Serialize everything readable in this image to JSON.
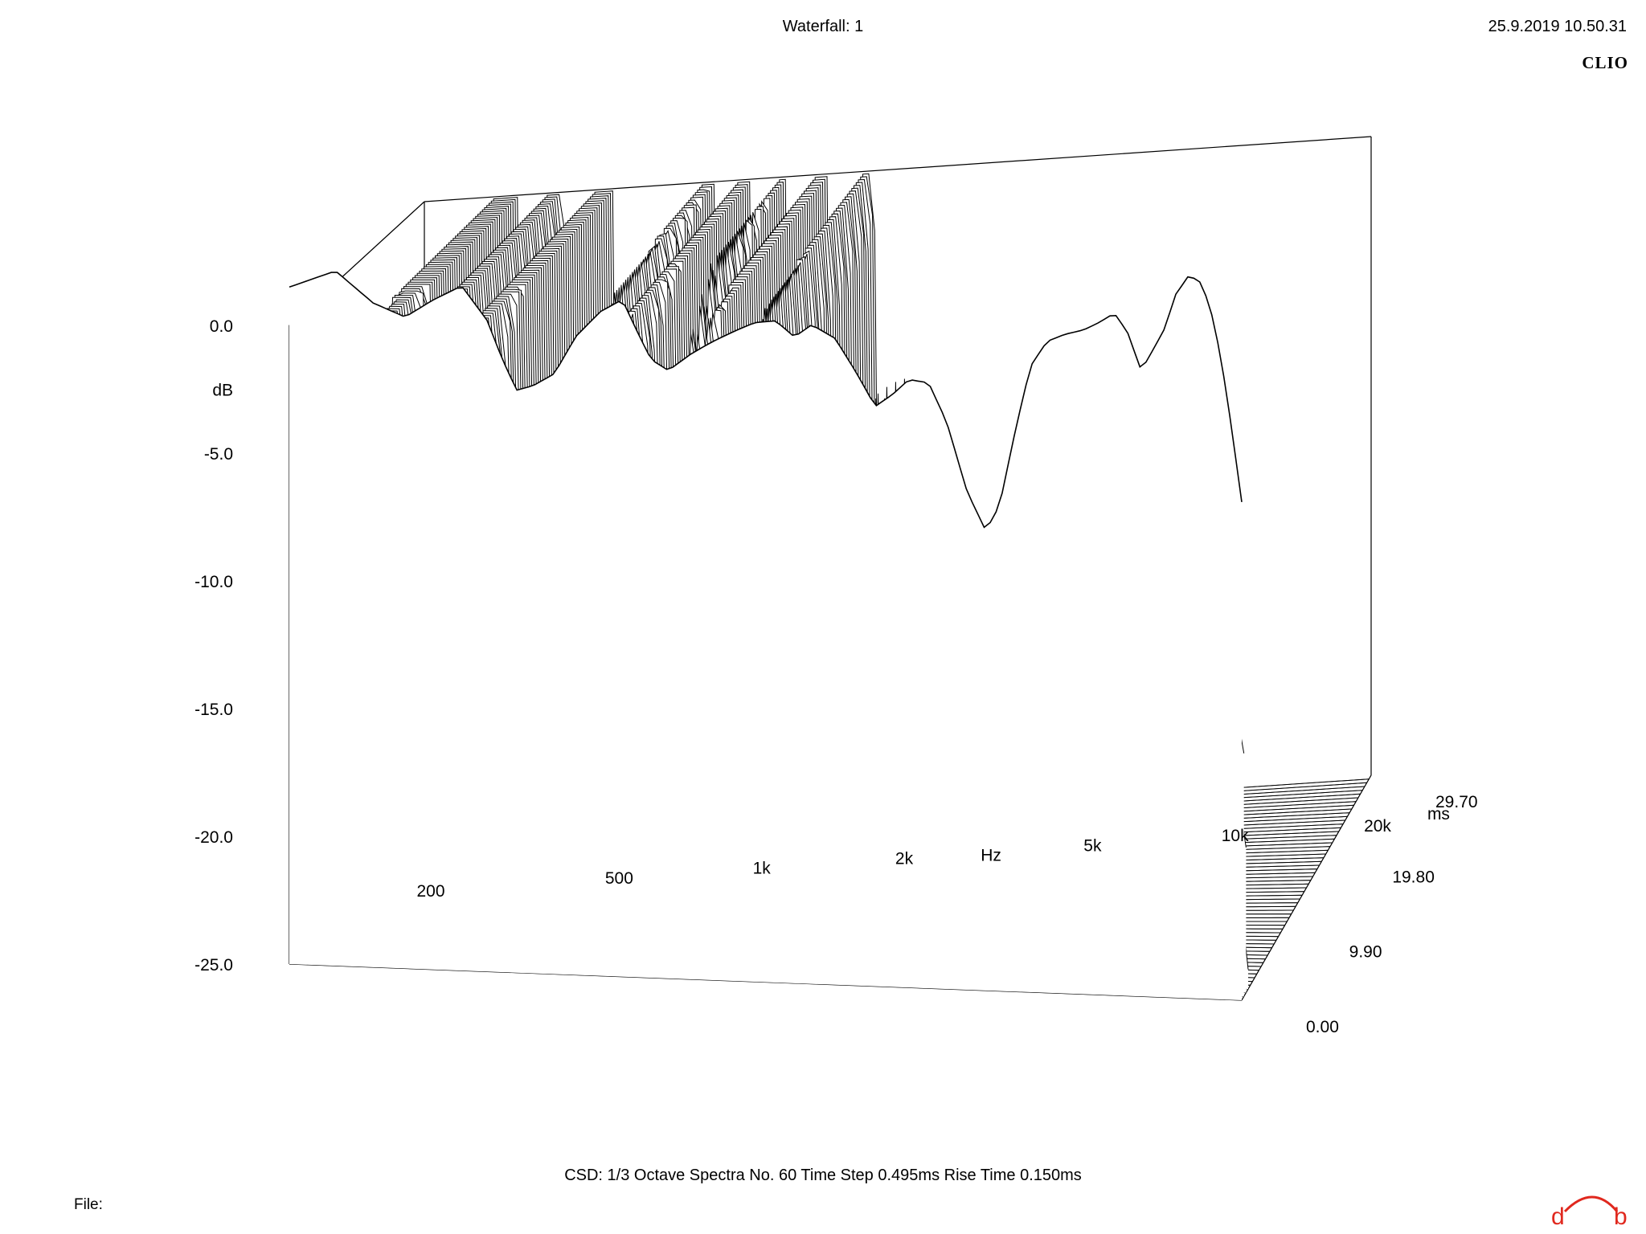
{
  "header": {
    "title": "Waterfall: 1",
    "timestamp": "25.9.2019 10.50.31",
    "brand": "CLIO"
  },
  "footer": {
    "info": "CSD:   1/3 Octave   Spectra No. 60   Time Step 0.495ms   Rise Time 0.150ms",
    "file_label": "File:"
  },
  "colors": {
    "line": "#000000",
    "background": "#ffffff",
    "logo_accent": "#e0281e"
  },
  "chart_data": {
    "type": "waterfall",
    "title": "Waterfall: 1",
    "x_axis": {
      "label": "Hz",
      "scale": "log",
      "range": [
        200,
        20000
      ],
      "ticks": [
        {
          "value": 200,
          "label": "200"
        },
        {
          "value": 500,
          "label": "500"
        },
        {
          "value": 1000,
          "label": "1k"
        },
        {
          "value": 2000,
          "label": "2k"
        },
        {
          "value": 5000,
          "label": "5k"
        },
        {
          "value": 10000,
          "label": "10k"
        },
        {
          "value": 20000,
          "label": "20k"
        }
      ]
    },
    "y_axis": {
      "label": "dB",
      "range": [
        -25,
        0
      ],
      "ticks": [
        {
          "value": 0,
          "label": "0.0"
        },
        {
          "value": -5,
          "label": "-5.0"
        },
        {
          "value": -10,
          "label": "-10.0"
        },
        {
          "value": -15,
          "label": "-15.0"
        },
        {
          "value": -20,
          "label": "-20.0"
        },
        {
          "value": -25,
          "label": "-25.0"
        }
      ]
    },
    "z_axis": {
      "label": "ms",
      "range": [
        0,
        29.7
      ],
      "ticks": [
        {
          "value": 0,
          "label": "0.00"
        },
        {
          "value": 9.9,
          "label": "9.90"
        },
        {
          "value": 19.8,
          "label": "19.80"
        },
        {
          "value": 29.7,
          "label": "29.70"
        }
      ]
    },
    "spectra_count": 60,
    "time_step_ms": 0.495,
    "rise_time_ms": 0.15,
    "smoothing": "1/3 Octave",
    "front_response_db": [
      {
        "f": 200,
        "db": 1.5
      },
      {
        "f": 250,
        "db": 2.2
      },
      {
        "f": 300,
        "db": 1.0
      },
      {
        "f": 350,
        "db": 0.5
      },
      {
        "f": 400,
        "db": 1.2
      },
      {
        "f": 460,
        "db": 1.8
      },
      {
        "f": 520,
        "db": 0.5
      },
      {
        "f": 560,
        "db": -1.0
      },
      {
        "f": 600,
        "db": -2.2
      },
      {
        "f": 650,
        "db": -2.0
      },
      {
        "f": 720,
        "db": -1.5
      },
      {
        "f": 800,
        "db": 0.0
      },
      {
        "f": 900,
        "db": 1.0
      },
      {
        "f": 1000,
        "db": 1.5
      },
      {
        "f": 1080,
        "db": 0.2
      },
      {
        "f": 1150,
        "db": -0.8
      },
      {
        "f": 1250,
        "db": -1.2
      },
      {
        "f": 1400,
        "db": -0.5
      },
      {
        "f": 1550,
        "db": 0.0
      },
      {
        "f": 1750,
        "db": 0.5
      },
      {
        "f": 1900,
        "db": 0.8
      },
      {
        "f": 2100,
        "db": 0.9
      },
      {
        "f": 2300,
        "db": 0.3
      },
      {
        "f": 2500,
        "db": 0.8
      },
      {
        "f": 2800,
        "db": 0.3
      },
      {
        "f": 3100,
        "db": -1.0
      },
      {
        "f": 3400,
        "db": -2.3
      },
      {
        "f": 3700,
        "db": -1.8
      },
      {
        "f": 4000,
        "db": -1.2
      },
      {
        "f": 4400,
        "db": -1.3
      },
      {
        "f": 4800,
        "db": -2.8
      },
      {
        "f": 5300,
        "db": -5.5
      },
      {
        "f": 5800,
        "db": -7.0
      },
      {
        "f": 6200,
        "db": -6.0
      },
      {
        "f": 6700,
        "db": -3.0
      },
      {
        "f": 7200,
        "db": -0.5
      },
      {
        "f": 7800,
        "db": 0.5
      },
      {
        "f": 8500,
        "db": 0.8
      },
      {
        "f": 9300,
        "db": 1.0
      },
      {
        "f": 10000,
        "db": 1.3
      },
      {
        "f": 10800,
        "db": 1.7
      },
      {
        "f": 11500,
        "db": 1.0
      },
      {
        "f": 12300,
        "db": -0.5
      },
      {
        "f": 13000,
        "db": 0.3
      },
      {
        "f": 13800,
        "db": 1.2
      },
      {
        "f": 14500,
        "db": 2.5
      },
      {
        "f": 15500,
        "db": 3.3
      },
      {
        "f": 16500,
        "db": 3.0
      },
      {
        "f": 17500,
        "db": 1.5
      },
      {
        "f": 18500,
        "db": -1.0
      },
      {
        "f": 19500,
        "db": -4.0
      },
      {
        "f": 20000,
        "db": -5.5
      }
    ]
  }
}
